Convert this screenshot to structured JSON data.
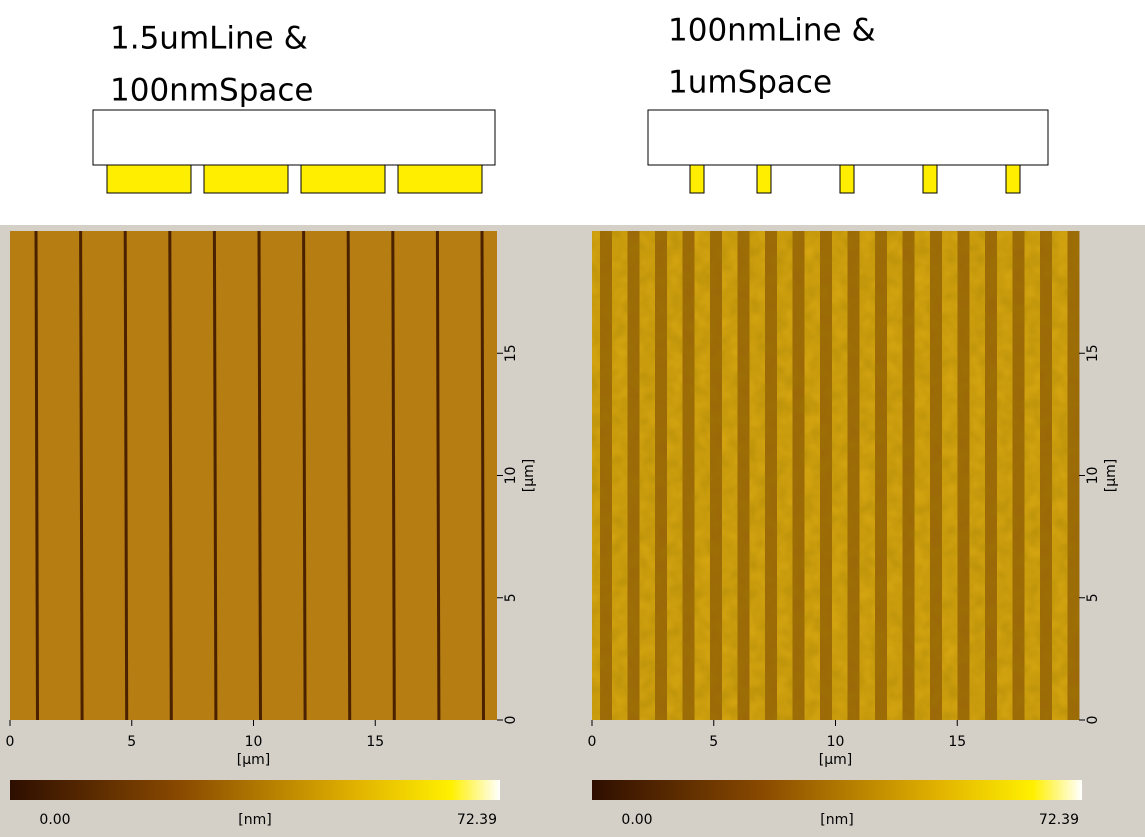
{
  "panels": [
    {
      "title_lines": [
        "1.5umLine &",
        "100nmSpace"
      ],
      "xticks": [
        0,
        5,
        10,
        15
      ],
      "yticks": [
        0,
        5,
        10,
        15
      ],
      "x_unit": "[µm]",
      "y_unit": "[µm]",
      "colorbar": {
        "min": "0.00",
        "unit": "[nm]",
        "max": "72.39"
      }
    },
    {
      "title_lines": [
        "100nmLine &",
        "1umSpace"
      ],
      "xticks": [
        0,
        5,
        10,
        15
      ],
      "yticks": [
        0,
        5,
        10,
        15
      ],
      "x_unit": "[µm]",
      "y_unit": "[µm]",
      "colorbar": {
        "min": "0.00",
        "unit": "[nm]",
        "max": "72.39"
      }
    }
  ]
}
